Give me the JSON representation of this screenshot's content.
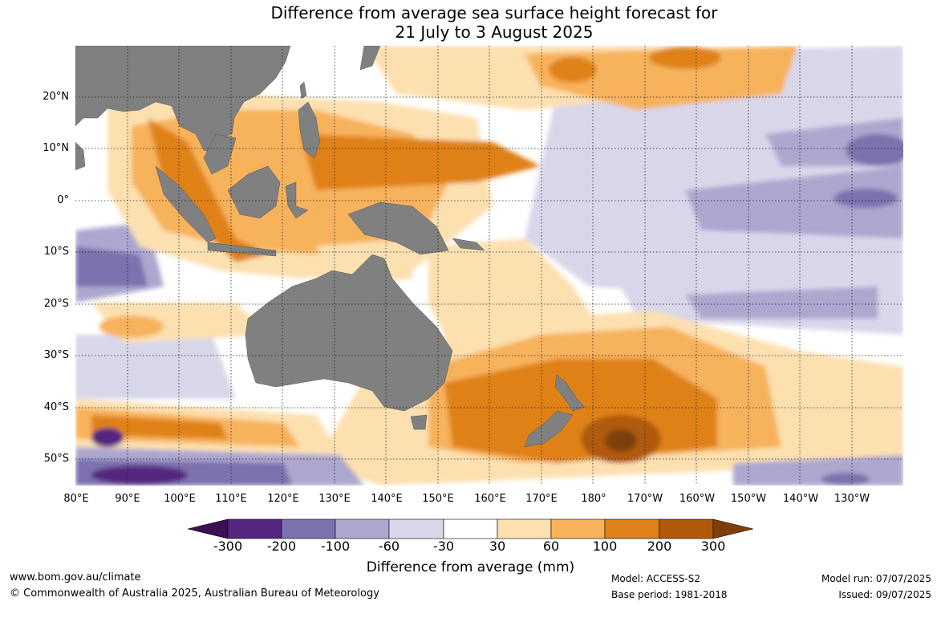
{
  "title": {
    "line1": "Difference from average sea surface height forecast for",
    "line2": "21 July to 3 August 2025"
  },
  "map": {
    "region": "Indo-Pacific (80°E to 120°W, 30°N to 55°S)",
    "land_color": "#808080",
    "grid_style": "dotted black",
    "lat_labels": [
      "20°N",
      "10°N",
      "0°",
      "10°S",
      "20°S",
      "30°S",
      "40°S",
      "50°S"
    ],
    "lon_labels": [
      "80°E",
      "90°E",
      "100°E",
      "110°E",
      "120°E",
      "130°E",
      "140°E",
      "150°E",
      "160°E",
      "170°E",
      "180°",
      "170°W",
      "160°W",
      "150°W",
      "140°W",
      "130°W"
    ],
    "anomaly_regions": [
      {
        "area": "Indonesian Seas / Maritime Continent",
        "category": "+100 to +200 mm"
      },
      {
        "area": "Tasman Sea and south-west Pacific near New Zealand",
        "category": "+100 to +200 mm, locally +200 to +300 mm"
      },
      {
        "area": "Equatorial central-east Pacific",
        "category": "-30 to -100 mm"
      },
      {
        "area": "Southern Indian Ocean south of 40°S",
        "category": "-100 to -300 mm"
      }
    ]
  },
  "colorbar": {
    "colors": [
      "#3b0f52",
      "#54277f",
      "#7d71ae",
      "#aca7cf",
      "#d8d7ea",
      "#ffffff",
      "#fde0b0",
      "#f7b25c",
      "#df8119",
      "#b05a0a",
      "#7d3f0a"
    ],
    "tick_labels": [
      "-300",
      "-200",
      "-100",
      "-60",
      "-30",
      "30",
      "60",
      "100",
      "200",
      "300"
    ],
    "title": "Difference from average (mm)"
  },
  "footer": {
    "website": "www.bom.gov.au/climate",
    "copyright": "© Commonwealth of Australia 2025, Australian Bureau of Meteorology",
    "model": "Model: ACCESS-S2",
    "base_period": "Base period: 1981-2018",
    "model_run": "Model run: 07/07/2025",
    "issued": "Issued: 09/07/2025"
  }
}
